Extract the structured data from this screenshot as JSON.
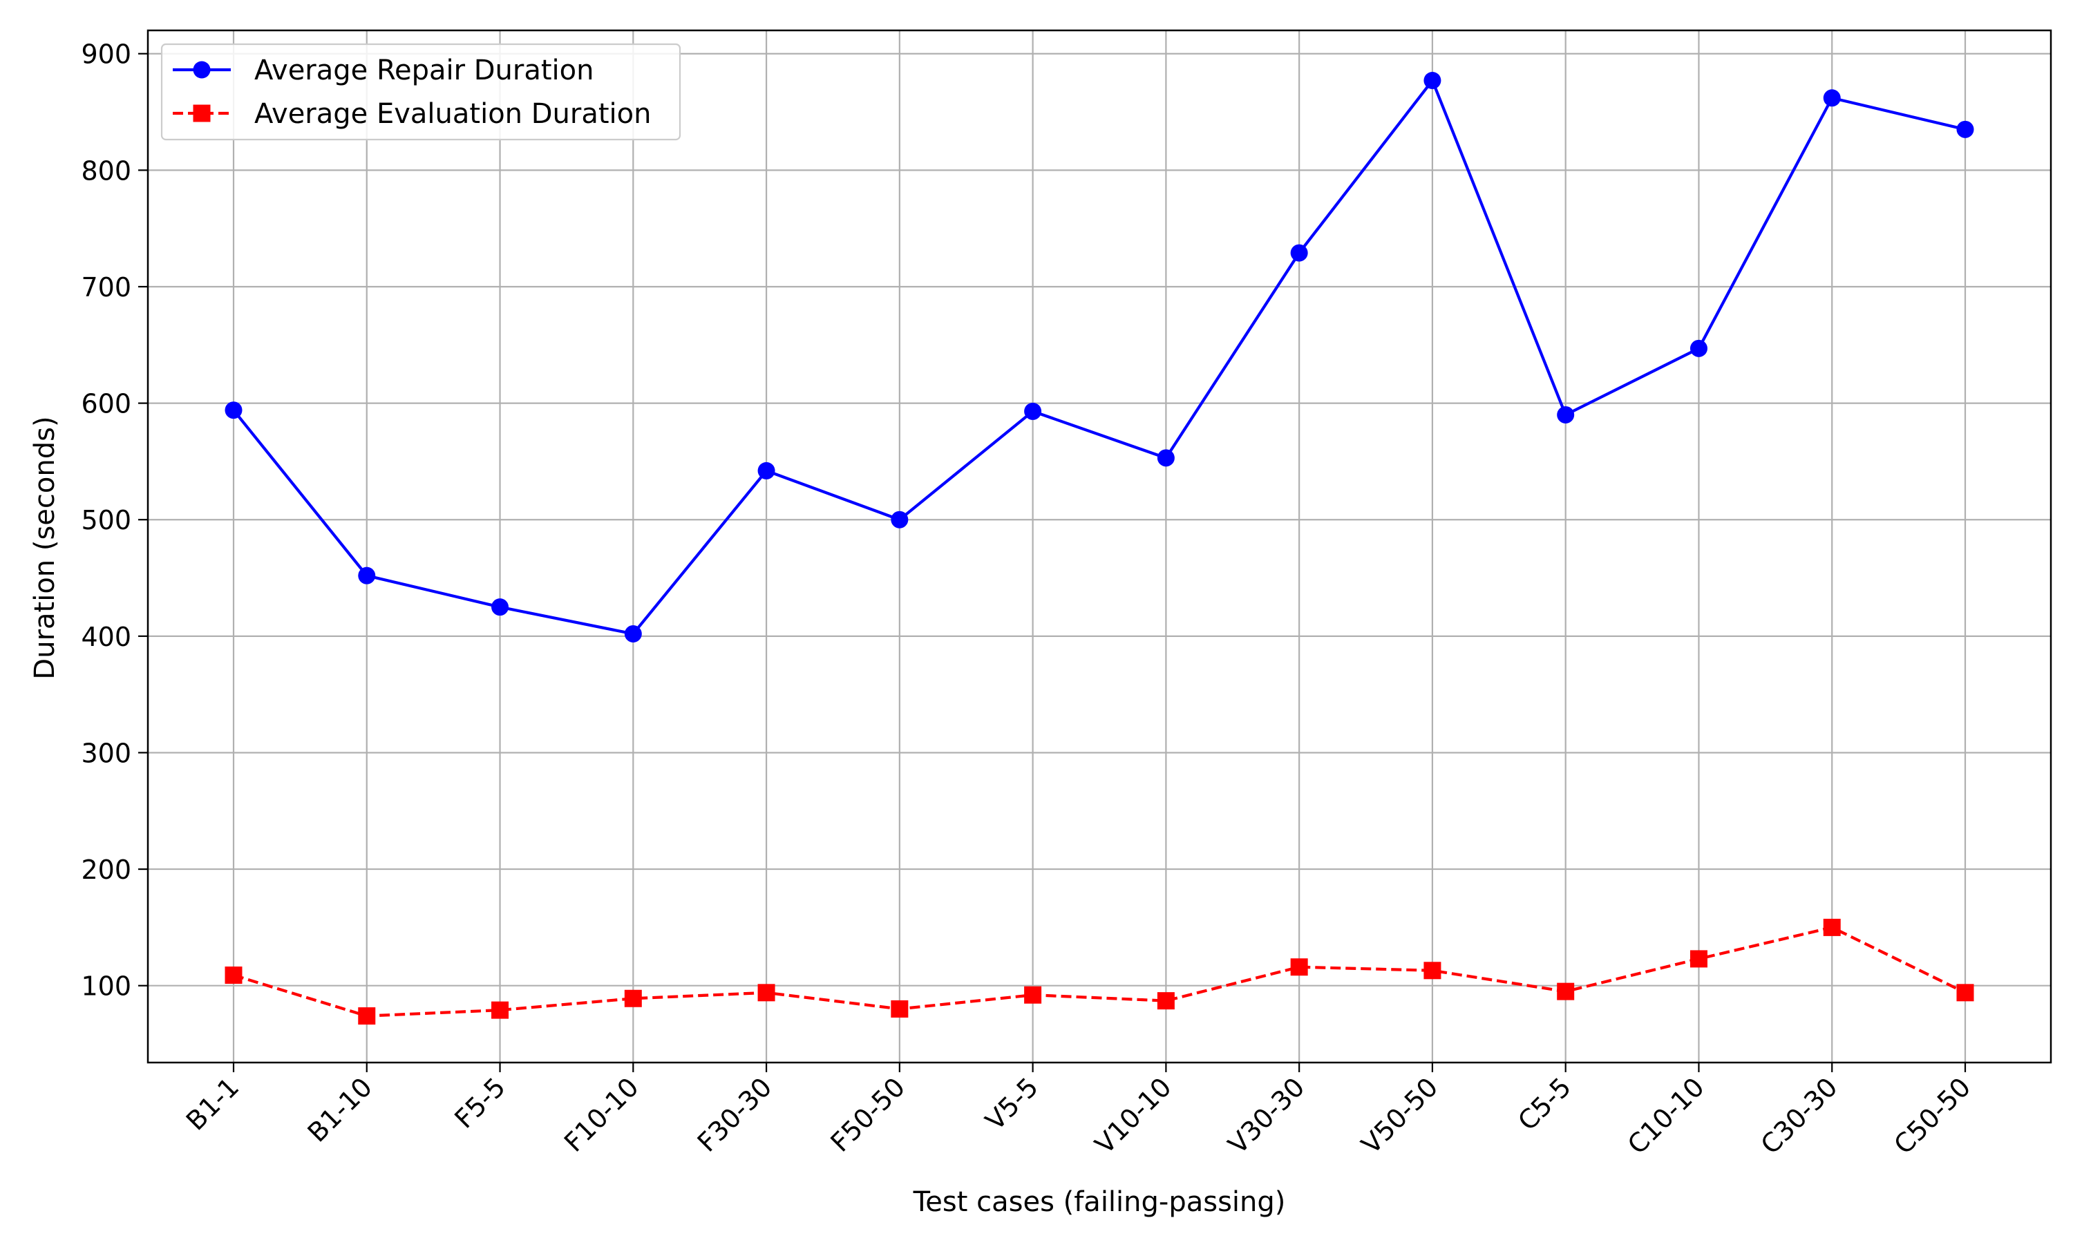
{
  "chart_data": {
    "type": "line",
    "title": "",
    "xlabel": "Test cases (failing-passing)",
    "ylabel": "Duration (seconds)",
    "categories": [
      "B1-1",
      "B1-10",
      "F5-5",
      "F10-10",
      "F30-30",
      "F50-50",
      "V5-5",
      "V10-10",
      "V30-30",
      "V50-50",
      "C5-5",
      "C10-10",
      "C30-30",
      "C50-50"
    ],
    "ylim": [
      34,
      920
    ],
    "yticks": [
      100,
      200,
      300,
      400,
      500,
      600,
      700,
      800,
      900
    ],
    "grid": true,
    "legend_position": "top-left",
    "series": [
      {
        "name": "Average Repair Duration",
        "color": "#0000ff",
        "linestyle": "solid",
        "marker": "circle",
        "values": [
          594,
          452,
          425,
          402,
          542,
          500,
          593,
          553,
          729,
          877,
          590,
          647,
          862,
          835
        ]
      },
      {
        "name": "Average Evaluation Duration",
        "color": "#ff0000",
        "linestyle": "dashed",
        "marker": "square",
        "values": [
          109,
          74,
          79,
          89,
          94,
          80,
          92,
          87,
          116,
          113,
          95,
          123,
          150,
          94
        ]
      }
    ]
  }
}
